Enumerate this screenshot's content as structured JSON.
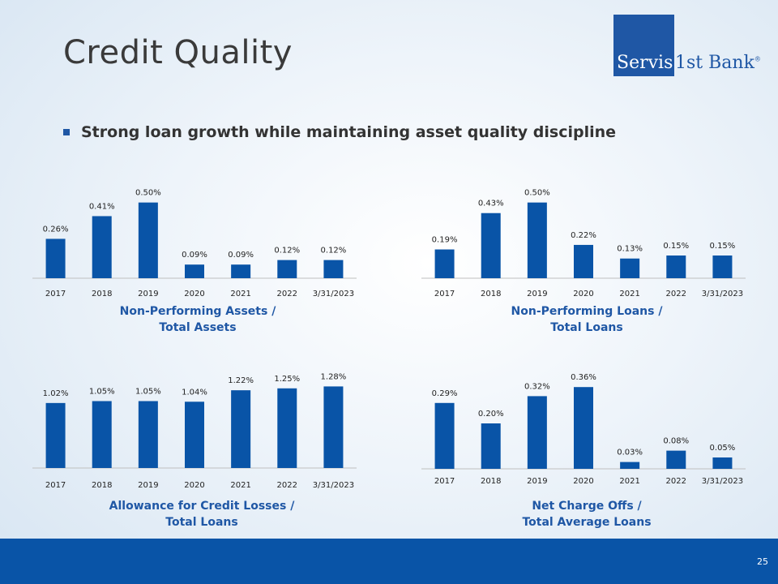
{
  "slide": {
    "title": "Credit Quality",
    "bullet": "Strong loan growth while maintaining asset quality discipline",
    "page_number": "25"
  },
  "logo": {
    "text_part1": "Servis",
    "text_part2": "1st Bank",
    "registered": "®"
  },
  "colors": {
    "bar": "#0954a7",
    "title_text": "#1f57a5",
    "footer": "#0954a7"
  },
  "chart_titles": {
    "npa": [
      "Non-Performing Assets /",
      "Total Assets"
    ],
    "npl": [
      "Non-Performing Loans /",
      "Total Loans"
    ],
    "acl": [
      "Allowance for Credit Losses /",
      "Total Loans"
    ],
    "nco": [
      "Net Charge Offs /",
      "Total Average Loans"
    ]
  },
  "chart_data": [
    {
      "type": "bar",
      "title": "Non-Performing Assets / Total Assets",
      "categories": [
        "2017",
        "2018",
        "2019",
        "2020",
        "2021",
        "2022",
        "3/31/2023"
      ],
      "values": [
        0.26,
        0.41,
        0.5,
        0.09,
        0.09,
        0.12,
        0.12
      ],
      "labels": [
        "0.26%",
        "0.41%",
        "0.50%",
        "0.09%",
        "0.09%",
        "0.12%",
        "0.12%"
      ],
      "unit": "%"
    },
    {
      "type": "bar",
      "title": "Non-Performing Loans / Total Loans",
      "categories": [
        "2017",
        "2018",
        "2019",
        "2020",
        "2021",
        "2022",
        "3/31/2023"
      ],
      "values": [
        0.19,
        0.43,
        0.5,
        0.22,
        0.13,
        0.15,
        0.15
      ],
      "labels": [
        "0.19%",
        "0.43%",
        "0.50%",
        "0.22%",
        "0.13%",
        "0.15%",
        "0.15%"
      ],
      "unit": "%"
    },
    {
      "type": "bar",
      "title": "Allowance for Credit Losses / Total Loans",
      "categories": [
        "2017",
        "2018",
        "2019",
        "2020",
        "2021",
        "2022",
        "3/31/2023"
      ],
      "values": [
        1.02,
        1.05,
        1.05,
        1.04,
        1.22,
        1.25,
        1.28
      ],
      "labels": [
        "1.02%",
        "1.05%",
        "1.05%",
        "1.04%",
        "1.22%",
        "1.25%",
        "1.28%"
      ],
      "unit": "%"
    },
    {
      "type": "bar",
      "title": "Net Charge Offs / Total Average Loans",
      "categories": [
        "2017",
        "2018",
        "2019",
        "2020",
        "2021",
        "2022",
        "3/31/2023"
      ],
      "values": [
        0.29,
        0.2,
        0.32,
        0.36,
        0.03,
        0.08,
        0.05
      ],
      "labels": [
        "0.29%",
        "0.20%",
        "0.32%",
        "0.36%",
        "0.03%",
        "0.08%",
        "0.05%"
      ],
      "unit": "%"
    }
  ]
}
